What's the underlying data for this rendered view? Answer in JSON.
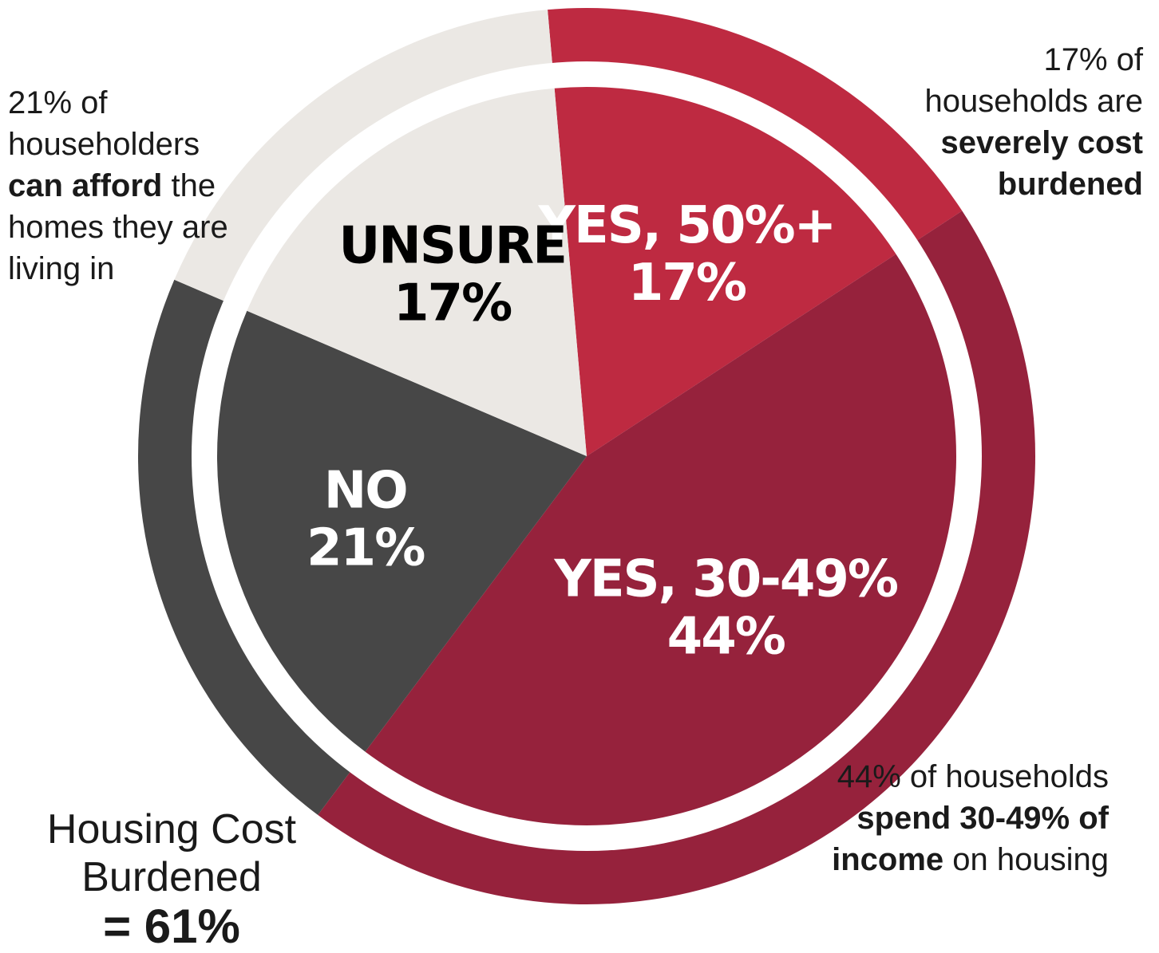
{
  "chart_data": {
    "type": "pie",
    "slices": [
      {
        "label": "Yes, 50%+",
        "value": 17,
        "display": "17%",
        "color": "#be2a41",
        "ring_color": "#be2a41"
      },
      {
        "label": "Yes, 30-49%",
        "value": 44,
        "display": "44%",
        "color": "#96223c",
        "ring_color": "#96223c"
      },
      {
        "label": "No",
        "value": 21,
        "display": "21%",
        "color": "#474747",
        "ring_color": "#474747"
      },
      {
        "label": "Unsure",
        "value": 17,
        "display": "17%",
        "color": "#ebe8e4",
        "ring_color": "#ebe8e4"
      }
    ],
    "label_colors": {
      "light": "#ffffff",
      "dark": "#000000"
    }
  },
  "annotations": {
    "left": {
      "pre": "21% of householders",
      "bold": "can afford",
      "post": "the homes they are living in"
    },
    "right_top": {
      "pre": "17% of households are",
      "bold": "severely cost burdened"
    },
    "right_bottom": {
      "pre": "44% of households",
      "bold": "spend 30-49% of income",
      "post": "on housing"
    }
  },
  "total": {
    "line1": "Housing Cost",
    "line2": "Burdened",
    "value": "= 61%"
  }
}
